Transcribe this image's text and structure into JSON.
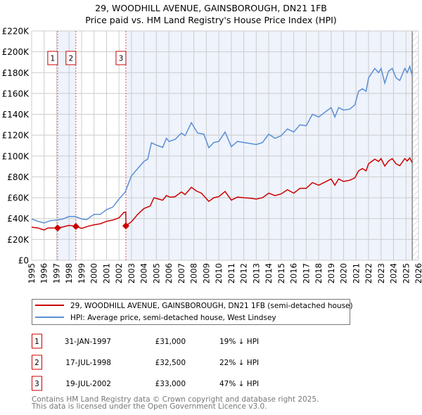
{
  "chart_data": {
    "type": "line",
    "title": "29, WOODHILL AVENUE, GAINSBOROUGH, DN21 1FB",
    "subtitle": "Price paid vs. HM Land Registry's House Price Index (HPI)",
    "xlim": [
      1995,
      2026
    ],
    "ylim": [
      0,
      220000
    ],
    "x_ticks": [
      1995,
      1996,
      1997,
      1998,
      1999,
      2000,
      2001,
      2002,
      2003,
      2004,
      2005,
      2006,
      2007,
      2008,
      2009,
      2010,
      2011,
      2012,
      2013,
      2014,
      2015,
      2016,
      2017,
      2018,
      2019,
      2020,
      2021,
      2022,
      2023,
      2024,
      2025,
      2026
    ],
    "y_ticks": [
      0,
      20000,
      40000,
      60000,
      80000,
      100000,
      120000,
      140000,
      160000,
      180000,
      200000,
      220000
    ],
    "y_tick_labels": [
      "£0",
      "£20K",
      "£40K",
      "£60K",
      "£80K",
      "£100K",
      "£120K",
      "£140K",
      "£160K",
      "£180K",
      "£200K",
      "£220K"
    ],
    "grid": true,
    "colors": {
      "price": "#cc0000",
      "hpi": "#5b8fd4",
      "shade": "#eef3fc",
      "grid": "#cccccc"
    },
    "data_end": 2025.5,
    "series": [
      {
        "name": "29, WOODHILL AVENUE, GAINSBOROUGH, DN21 1FB (semi-detached house)",
        "key": "price",
        "x": [
          1995,
          1995.5,
          1996,
          1996.3,
          1997.08,
          1997.5,
          1998,
          1998.54,
          1999,
          1999.5,
          2000,
          2000.5,
          2001,
          2001.5,
          2002,
          2002.4,
          2002.54,
          2002.56,
          2003,
          2003.5,
          2004,
          2004.5,
          2004.8,
          2005.1,
          2005.5,
          2005.8,
          2006.1,
          2006.5,
          2007,
          2007.3,
          2007.8,
          2008.2,
          2008.6,
          2009.2,
          2009.6,
          2010,
          2010.5,
          2011,
          2011.5,
          2012,
          2012.5,
          2013,
          2013.5,
          2014,
          2014.5,
          2015,
          2015.5,
          2016,
          2016.5,
          2017,
          2017.5,
          2018,
          2018.5,
          2019,
          2019.3,
          2019.6,
          2020,
          2020.5,
          2020.9,
          2021.2,
          2021.5,
          2021.8,
          2022,
          2022.5,
          2022.8,
          2023,
          2023.3,
          2023.6,
          2023.9,
          2024.2,
          2024.5,
          2024.9,
          2025.1,
          2025.3,
          2025.5
        ],
        "y": [
          31700,
          31000,
          29000,
          31000,
          31000,
          32000,
          33500,
          32500,
          30600,
          32500,
          34000,
          35000,
          37300,
          38500,
          40700,
          46000,
          46000,
          33000,
          37000,
          44000,
          49700,
          52000,
          60000,
          59000,
          57600,
          62000,
          60500,
          61000,
          65500,
          63000,
          70000,
          66500,
          64400,
          56500,
          60000,
          61000,
          66000,
          57600,
          60600,
          60000,
          59500,
          58700,
          60000,
          64400,
          62000,
          63700,
          67700,
          64400,
          69000,
          69000,
          74500,
          72000,
          75000,
          78000,
          72000,
          78000,
          75600,
          76800,
          79000,
          85800,
          88000,
          85800,
          92500,
          97000,
          94800,
          97500,
          90300,
          95200,
          97500,
          92500,
          90800,
          97500,
          95200,
          98200,
          93600
        ]
      },
      {
        "name": "HPI: Average price, semi-detached house, West Lindsey",
        "key": "hpi",
        "x": [
          1995,
          1995.5,
          1996,
          1996.5,
          1997,
          1997.5,
          1998,
          1998.5,
          1999,
          1999.4,
          2000,
          2000.5,
          2001,
          2001.5,
          2002,
          2002.5,
          2003,
          2003.5,
          2004,
          2004.3,
          2004.6,
          2005,
          2005.5,
          2005.8,
          2006,
          2006.5,
          2007,
          2007.3,
          2007.8,
          2008.3,
          2008.8,
          2009.2,
          2009.6,
          2010,
          2010.5,
          2011,
          2011.5,
          2012,
          2012.5,
          2013,
          2013.5,
          2014,
          2014.5,
          2015,
          2015.5,
          2016,
          2016.5,
          2017,
          2017.5,
          2018,
          2018.5,
          2019,
          2019.3,
          2019.6,
          2020,
          2020.5,
          2020.9,
          2021.2,
          2021.5,
          2021.8,
          2022,
          2022.5,
          2022.8,
          2023,
          2023.3,
          2023.6,
          2023.9,
          2024.2,
          2024.5,
          2024.9,
          2025.1,
          2025.3,
          2025.5
        ],
        "y": [
          39600,
          37400,
          35800,
          38000,
          38500,
          39600,
          42000,
          42000,
          39600,
          39000,
          44000,
          44000,
          48600,
          51000,
          58700,
          65500,
          81000,
          88000,
          94800,
          97000,
          112800,
          110500,
          108300,
          117000,
          114000,
          116000,
          122000,
          119500,
          132000,
          122000,
          121000,
          108000,
          113000,
          114000,
          123000,
          109000,
          114000,
          113000,
          112000,
          111000,
          113000,
          121000,
          117000,
          119500,
          126000,
          123000,
          130000,
          129000,
          140000,
          137500,
          142000,
          146500,
          137500,
          146500,
          144000,
          145000,
          149000,
          162000,
          164500,
          162000,
          175000,
          184000,
          180000,
          184000,
          170000,
          181500,
          184000,
          175000,
          172500,
          184000,
          180000,
          186000,
          177000
        ]
      }
    ],
    "sales": [
      {
        "id": "1",
        "date": "31-JAN-1997",
        "x": 1997.08,
        "price": 31000,
        "price_label": "£31,000",
        "hpi_diff": "19% ↓ HPI"
      },
      {
        "id": "2",
        "date": "17-JUL-1998",
        "x": 1998.54,
        "price": 32500,
        "price_label": "£32,500",
        "hpi_diff": "22% ↓ HPI"
      },
      {
        "id": "3",
        "date": "19-JUL-2002",
        "x": 2002.55,
        "price": 33000,
        "price_label": "£33,000",
        "hpi_diff": "47% ↓ HPI"
      }
    ]
  },
  "footer": {
    "line1": "Contains HM Land Registry data © Crown copyright and database right 2025.",
    "line2": "This data is licensed under the Open Government Licence v3.0."
  }
}
